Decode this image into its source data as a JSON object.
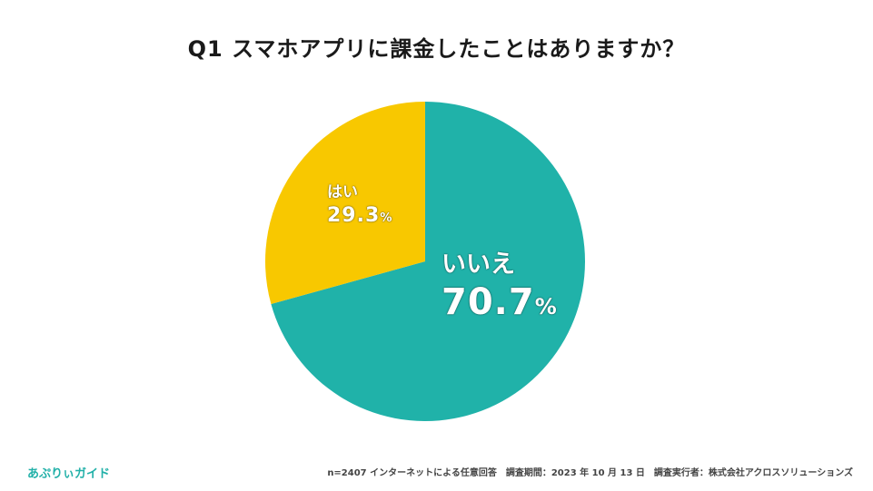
{
  "title": "Q1 スマホアプリに課金したことはありますか？",
  "chart_data": {
    "type": "pie",
    "title": "Q1 スマホアプリに課金したことはありますか？",
    "slices": [
      {
        "label": "いいえ",
        "value": 70.7,
        "display": "70.7",
        "color": "#20b2a9"
      },
      {
        "label": "はい",
        "value": 29.3,
        "display": "29.3",
        "color": "#f8c800"
      }
    ],
    "unit": "%",
    "legend": "none"
  },
  "brand": "あぷりぃガイド",
  "footer": "n=2407 インターネットによる任意回答　調査期間：2023 年 10 月 13 日　調査実行者：株式会社アクロスソリューションズ"
}
